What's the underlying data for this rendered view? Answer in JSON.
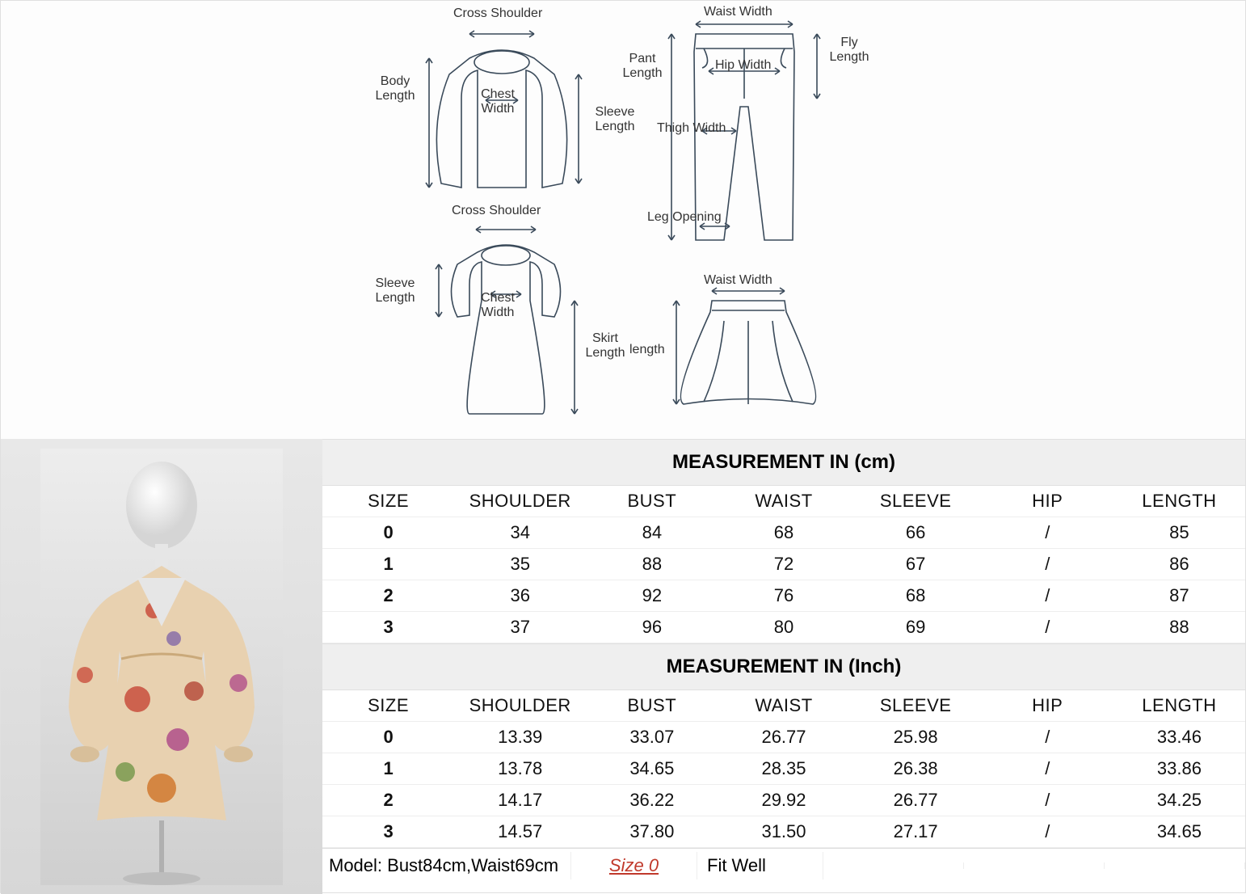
{
  "diagram": {
    "labels": {
      "cross_shoulder_top": "Cross Shoulder",
      "body_length": "Body Length",
      "chest_width_top": "Chest Width",
      "sleeve_length_top": "Sleeve Length",
      "cross_shoulder_dress": "Cross Shoulder",
      "sleeve_length_dress": "Sleeve Length",
      "chest_width_dress": "Chest Width",
      "skirt_length": "Skirt Length",
      "waist_width_pant": "Waist Width",
      "pant_length": "Pant Length",
      "hip_width": "Hip Width",
      "fly_length": "Fly Length",
      "thigh_width": "Thigh Width",
      "leg_opening": "Leg Opening",
      "waist_width_skirt": "Waist Width",
      "skirt_only_length": "length"
    },
    "stroke": "#3a4a5a"
  },
  "table_cm": {
    "title": "MEASUREMENT IN (cm)",
    "columns": [
      "SIZE",
      "SHOULDER",
      "BUST",
      "WAIST",
      "SLEEVE",
      "HIP",
      "LENGTH"
    ],
    "rows": [
      [
        "0",
        "34",
        "84",
        "68",
        "66",
        "/",
        "85"
      ],
      [
        "1",
        "35",
        "88",
        "72",
        "67",
        "/",
        "86"
      ],
      [
        "2",
        "36",
        "92",
        "76",
        "68",
        "/",
        "87"
      ],
      [
        "3",
        "37",
        "96",
        "80",
        "69",
        "/",
        "88"
      ]
    ]
  },
  "table_in": {
    "title": "MEASUREMENT IN (Inch)",
    "columns": [
      "SIZE",
      "SHOULDER",
      "BUST",
      "WAIST",
      "SLEEVE",
      "HIP",
      "LENGTH"
    ],
    "rows": [
      [
        "0",
        "13.39",
        "33.07",
        "26.77",
        "25.98",
        "/",
        "33.46"
      ],
      [
        "1",
        "13.78",
        "34.65",
        "28.35",
        "26.38",
        "/",
        "33.86"
      ],
      [
        "2",
        "14.17",
        "36.22",
        "29.92",
        "26.77",
        "/",
        "34.25"
      ],
      [
        "3",
        "14.57",
        "37.80",
        "31.50",
        "27.17",
        "/",
        "34.65"
      ]
    ]
  },
  "footer": {
    "model": "Model: Bust84cm,Waist69cm",
    "size": "Size 0",
    "fit": "Fit Well"
  },
  "colors": {
    "header_bg": "#efefef",
    "border": "#e0e0e0",
    "accent": "#c0392b"
  }
}
